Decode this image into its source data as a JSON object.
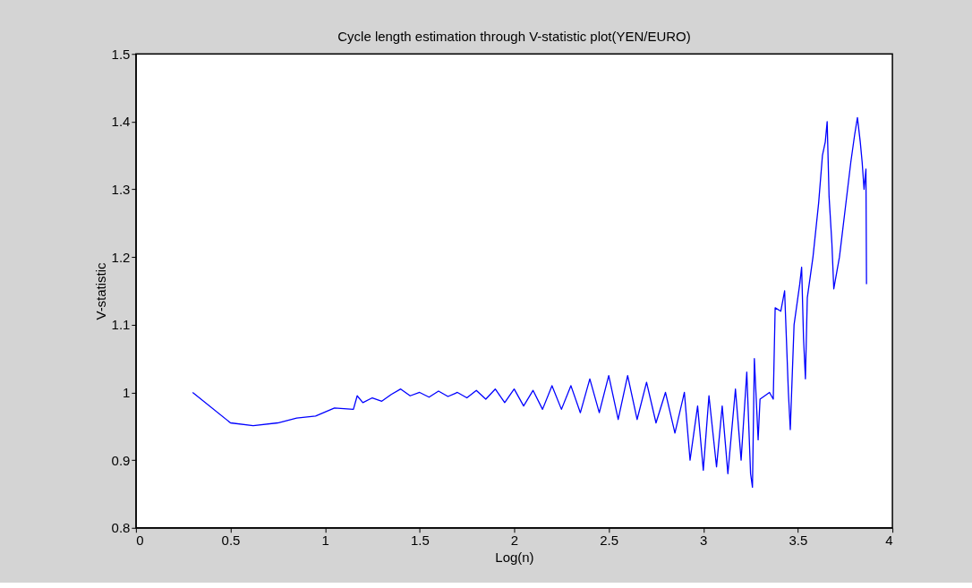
{
  "chart_data": {
    "type": "line",
    "title": "Cycle length estimation through V-statistic plot(YEN/EURO)",
    "xlabel": "Log(n)",
    "ylabel": "V-statistic",
    "xlim": [
      0,
      4
    ],
    "xticks": [
      0,
      0.5,
      1,
      1.5,
      2,
      2.5,
      3,
      3.5,
      4
    ],
    "ylim": [
      0.8,
      1.5
    ],
    "yticks": [
      0.8,
      0.9,
      1,
      1.1,
      1.2,
      1.3,
      1.4,
      1.5
    ],
    "grid": false,
    "line_style": "solid",
    "series": [
      {
        "color": "#0000ff",
        "x": [
          0.3,
          0.5,
          0.62,
          0.75,
          0.85,
          0.95,
          1.05,
          1.15,
          1.17,
          1.2,
          1.25,
          1.3,
          1.35,
          1.4,
          1.45,
          1.5,
          1.55,
          1.6,
          1.65,
          1.7,
          1.75,
          1.8,
          1.85,
          1.9,
          1.95,
          2.0,
          2.05,
          2.1,
          2.15,
          2.2,
          2.25,
          2.3,
          2.35,
          2.4,
          2.45,
          2.5,
          2.55,
          2.6,
          2.65,
          2.7,
          2.75,
          2.8,
          2.85,
          2.9,
          2.93,
          2.97,
          3.0,
          3.03,
          3.07,
          3.1,
          3.13,
          3.17,
          3.2,
          3.23,
          3.25,
          3.26,
          3.27,
          3.29,
          3.3,
          3.35,
          3.37,
          3.38,
          3.41,
          3.43,
          3.45,
          3.46,
          3.48,
          3.51,
          3.52,
          3.53,
          3.54,
          3.55,
          3.58,
          3.61,
          3.63,
          3.645,
          3.655,
          3.665,
          3.68,
          3.69,
          3.72,
          3.75,
          3.78,
          3.8,
          3.815,
          3.83,
          3.84,
          3.85,
          3.86,
          3.863
        ],
        "values": [
          1.0,
          0.955,
          0.951,
          0.955,
          0.962,
          0.965,
          0.977,
          0.975,
          0.995,
          0.985,
          0.992,
          0.987,
          0.997,
          1.005,
          0.995,
          1.0,
          0.993,
          1.002,
          0.994,
          1.0,
          0.992,
          1.003,
          0.99,
          1.005,
          0.985,
          1.005,
          0.98,
          1.003,
          0.975,
          1.01,
          0.975,
          1.01,
          0.97,
          1.02,
          0.97,
          1.025,
          0.96,
          1.025,
          0.96,
          1.015,
          0.955,
          1.0,
          0.94,
          1.0,
          0.9,
          0.98,
          0.885,
          0.995,
          0.89,
          0.98,
          0.88,
          1.005,
          0.9,
          1.03,
          0.88,
          0.86,
          1.05,
          0.93,
          0.99,
          1.0,
          0.99,
          1.125,
          1.12,
          1.15,
          1.0,
          0.945,
          1.1,
          1.16,
          1.185,
          1.08,
          1.02,
          1.14,
          1.2,
          1.28,
          1.35,
          1.37,
          1.4,
          1.29,
          1.22,
          1.153,
          1.2,
          1.27,
          1.34,
          1.38,
          1.406,
          1.37,
          1.34,
          1.3,
          1.33,
          1.16
        ]
      }
    ]
  }
}
